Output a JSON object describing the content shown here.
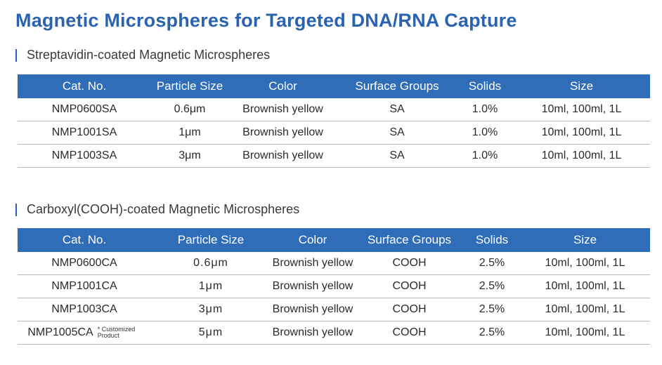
{
  "title": "Magnetic Microspheres for Targeted DNA/RNA Capture",
  "sections": [
    {
      "heading": "Streptavidin-coated Magnetic Microspheres",
      "columns": [
        "Cat. No.",
        "Particle Size",
        "Color",
        "Surface Groups",
        "Solids",
        "Size"
      ],
      "rows": [
        {
          "cat": "NMP0600SA",
          "size": "0.6μm",
          "color": "Brownish yellow",
          "group": "SA",
          "solids": "1.0%",
          "volume": "10ml, 100ml, 1L"
        },
        {
          "cat": "NMP1001SA",
          "size": "1μm",
          "color": "Brownish yellow",
          "group": "SA",
          "solids": "1.0%",
          "volume": "10ml, 100ml, 1L"
        },
        {
          "cat": "NMP1003SA",
          "size": "3μm",
          "color": "Brownish yellow",
          "group": "SA",
          "solids": "1.0%",
          "volume": "10ml, 100ml, 1L"
        }
      ]
    },
    {
      "heading": "Carboxyl(COOH)-coated Magnetic Microspheres",
      "columns": [
        "Cat. No.",
        "Particle Size",
        "Color",
        "Surface Groups",
        "Solids",
        "Size"
      ],
      "rows": [
        {
          "cat": "NMP0600CA",
          "note": "",
          "size": "0.6μm",
          "color": "Brownish yellow",
          "group": "COOH",
          "solids": "2.5%",
          "volume": "10ml, 100ml, 1L"
        },
        {
          "cat": "NMP1001CA",
          "note": "",
          "size": "1μm",
          "color": "Brownish yellow",
          "group": "COOH",
          "solids": "2.5%",
          "volume": "10ml, 100ml, 1L"
        },
        {
          "cat": "NMP1003CA",
          "note": "",
          "size": "3μm",
          "color": "Brownish yellow",
          "group": "COOH",
          "solids": "2.5%",
          "volume": "10ml, 100ml, 1L"
        },
        {
          "cat": "NMP1005CA",
          "note": "* Customized Product",
          "size": "5μm",
          "color": "Brownish yellow",
          "group": "COOH",
          "solids": "2.5%",
          "volume": "10ml, 100ml, 1L"
        }
      ]
    }
  ],
  "colors": {
    "title": "#2a63b0",
    "header_bg": "#2f6db8",
    "header_text": "#ffffff"
  }
}
